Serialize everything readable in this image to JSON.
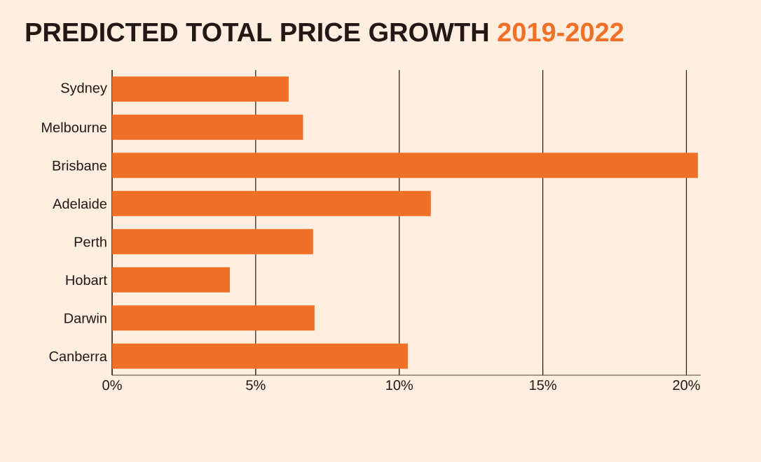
{
  "chart_data": {
    "type": "bar",
    "orientation": "horizontal",
    "title": "PREDICTED TOTAL PRICE GROWTH",
    "subtitle": "2019-2022",
    "categories": [
      "Sydney",
      "Melbourne",
      "Brisbane",
      "Adelaide",
      "Perth",
      "Hobart",
      "Darwin",
      "Canberra"
    ],
    "values": [
      6.15,
      6.65,
      20.4,
      11.1,
      7.0,
      4.1,
      7.05,
      10.3
    ],
    "color": "#f07028",
    "xlim": [
      0,
      20.5
    ],
    "xticks": [
      {
        "value": 0,
        "label": "0%"
      },
      {
        "value": 5,
        "label": "5%"
      },
      {
        "value": 10,
        "label": "10%"
      },
      {
        "value": 15,
        "label": "15%"
      },
      {
        "value": 20,
        "label": "20%"
      }
    ],
    "grid": "x"
  }
}
